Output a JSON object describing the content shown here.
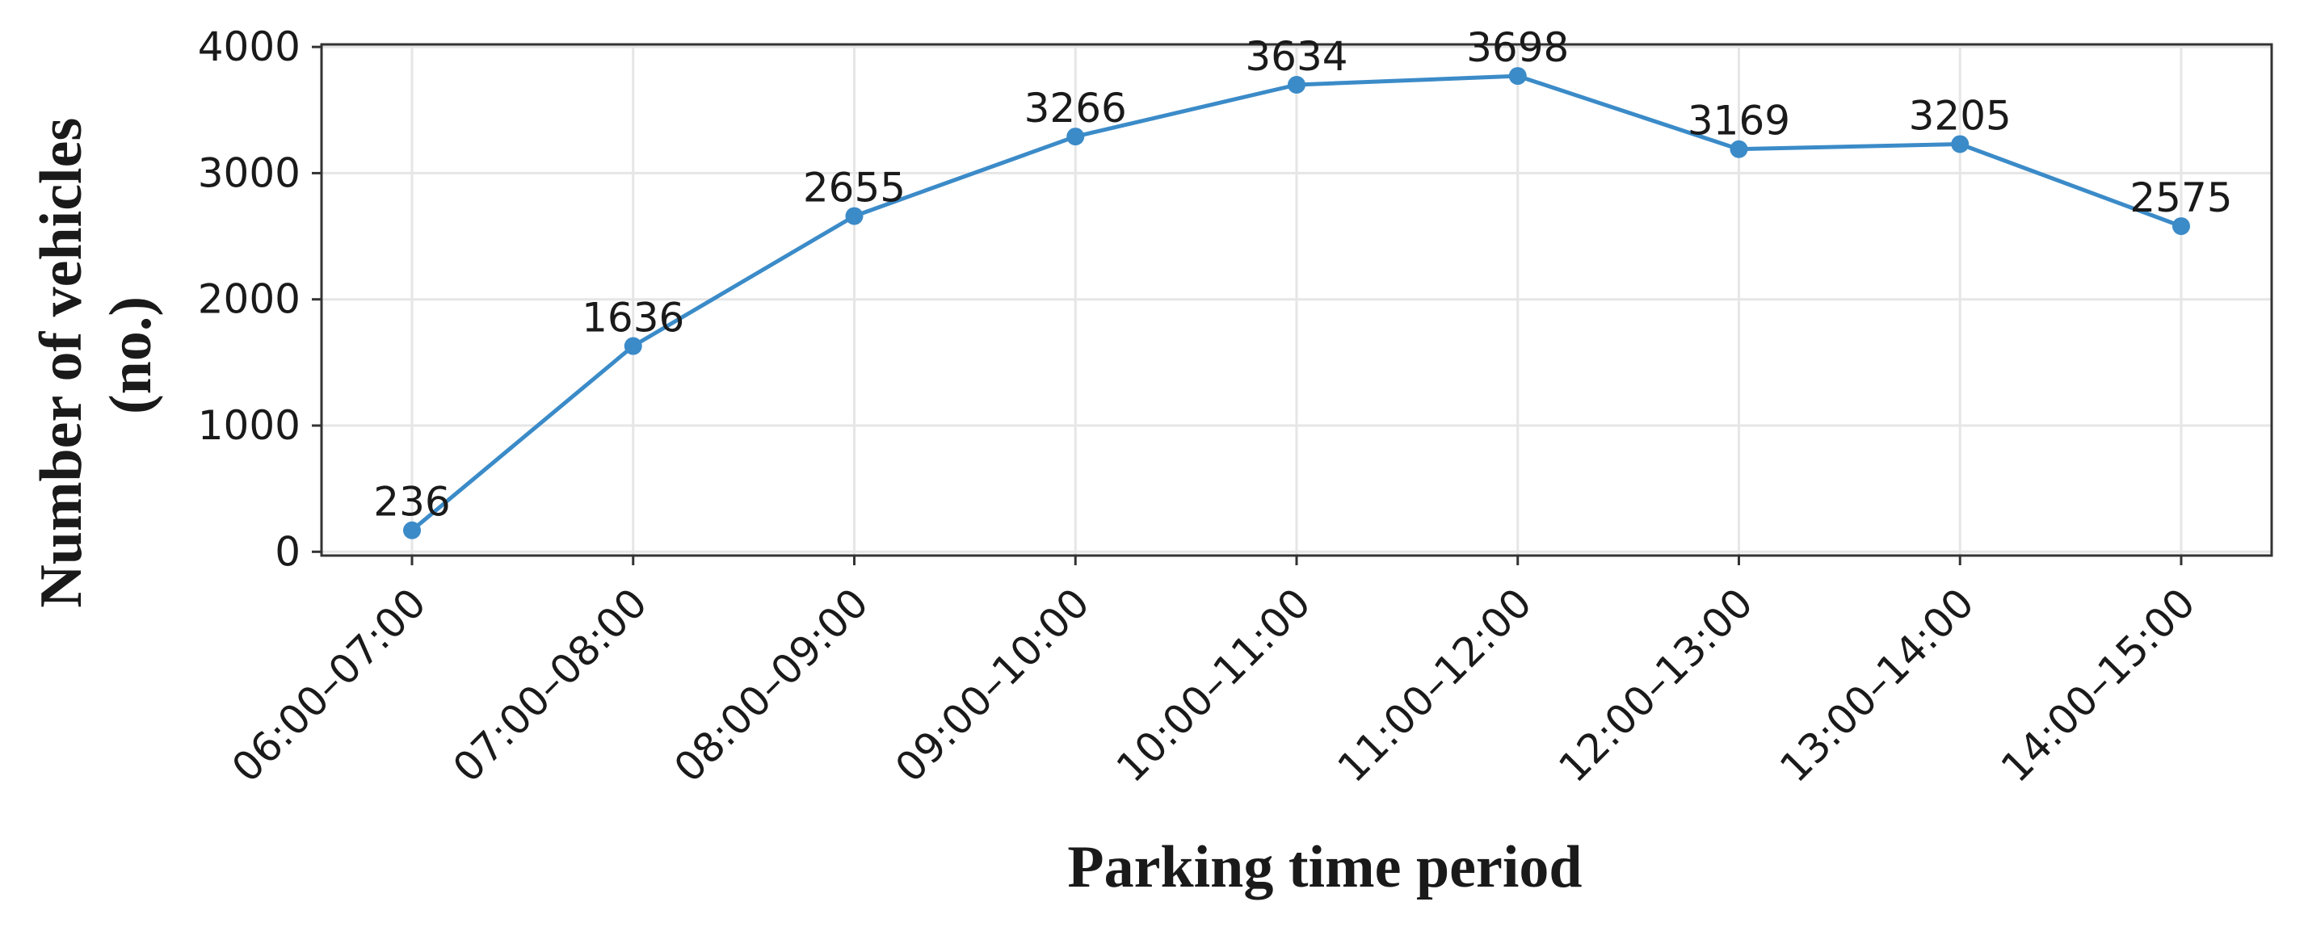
{
  "chart_data": {
    "type": "line",
    "title": "",
    "xlabel": "Parking time period",
    "ylabel_lines": [
      "Number of vehicles",
      "(no.)"
    ],
    "categories": [
      "06:00–07:00",
      "07:00–08:00",
      "08:00–09:00",
      "09:00–10:00",
      "10:00–11:00",
      "11:00–12:00",
      "12:00–13:00",
      "13:00–14:00",
      "14:00–15:00"
    ],
    "series": [
      {
        "values": [
          236,
          1636,
          2655,
          3266,
          3634,
          3698,
          3169,
          3205,
          2575
        ],
        "plotted_values": [
          170,
          1630,
          2660,
          3290,
          3700,
          3770,
          3190,
          3230,
          2580
        ],
        "color": "#3b8bc8"
      }
    ],
    "yticks": [
      0,
      1000,
      2000,
      3000,
      4000
    ],
    "ylim": [
      -30,
      4020
    ],
    "grid": true,
    "legend": "none"
  }
}
